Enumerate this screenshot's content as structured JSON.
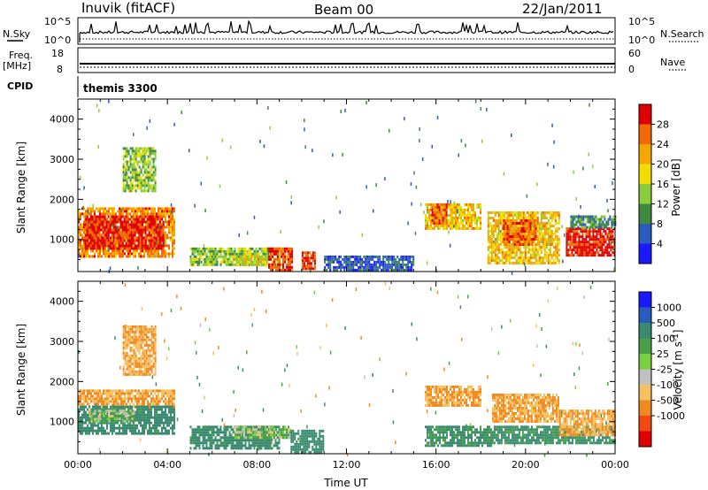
{
  "header": {
    "title": "Inuvik (fitACF)",
    "beam": "Beam 00",
    "date": "22/Jan/2011"
  },
  "nsky_panel": {
    "left_label": "N.Sky",
    "left_ticks": [
      "10^5",
      "10^0"
    ],
    "right_label": "N.Search",
    "right_ticks": [
      "10^5",
      "10^0"
    ]
  },
  "freq_panel": {
    "left_label_1": "Freq.",
    "left_label_2": "[MHz]",
    "left_ticks": [
      "18",
      "8"
    ],
    "right_label": "Nave",
    "right_ticks": [
      "60",
      "0"
    ]
  },
  "cpid": {
    "label": "CPID",
    "value": "themis 3300"
  },
  "colors": {
    "power_scale": [
      "#1a1aff",
      "#2a5cc0",
      "#3f8a3f",
      "#8acd3c",
      "#f2dd00",
      "#f5a600",
      "#f26a00",
      "#e00000"
    ],
    "velocity_scale": [
      "#e00000",
      "#f04a10",
      "#f08a20",
      "#f5c060",
      "#c0c0c0",
      "#78d040",
      "#48a048",
      "#3a8a70",
      "#2a5cc0",
      "#1a1aff"
    ]
  },
  "chart_data": [
    {
      "type": "heatmap",
      "name": "power",
      "ylabel": "Slant Range [km]",
      "yticks": [
        "1000",
        "2000",
        "3000",
        "4000"
      ],
      "ylim": [
        200,
        4500
      ],
      "xlim": [
        "00:00",
        "24:00"
      ],
      "colorbar_label": "Power [dB]",
      "colorbar_ticks": [
        "4",
        "8",
        "12",
        "16",
        "20",
        "24",
        "28"
      ],
      "colorbar_range": [
        0,
        32
      ],
      "regions": [
        {
          "t0": 0.0,
          "t1": 4.3,
          "r0": 600,
          "r1": 1800,
          "value": 24
        },
        {
          "t0": 0.3,
          "t1": 3.8,
          "r0": 800,
          "r1": 1600,
          "value": 30
        },
        {
          "t0": 2.0,
          "t1": 3.5,
          "r0": 2200,
          "r1": 3300,
          "value": 14
        },
        {
          "t0": 5.0,
          "t1": 9.0,
          "r0": 350,
          "r1": 800,
          "value": 14
        },
        {
          "t0": 7.0,
          "t1": 8.5,
          "r0": 400,
          "r1": 600,
          "value": 18
        },
        {
          "t0": 8.5,
          "t1": 9.6,
          "r0": 250,
          "r1": 800,
          "value": 28
        },
        {
          "t0": 10.0,
          "t1": 10.6,
          "r0": 250,
          "r1": 700,
          "value": 28
        },
        {
          "t0": 15.5,
          "t1": 18.0,
          "r0": 1300,
          "r1": 1900,
          "value": 20
        },
        {
          "t0": 15.8,
          "t1": 16.5,
          "r0": 1400,
          "r1": 1900,
          "value": 26
        },
        {
          "t0": 18.3,
          "t1": 21.5,
          "r0": 400,
          "r1": 1700,
          "value": 20
        },
        {
          "t0": 19.0,
          "t1": 20.5,
          "r0": 900,
          "r1": 1500,
          "value": 26
        },
        {
          "t0": 21.8,
          "t1": 24.0,
          "r0": 600,
          "r1": 1300,
          "value": 30
        },
        {
          "t0": 22.0,
          "t1": 24.0,
          "r0": 1300,
          "r1": 1600,
          "value": 10
        },
        {
          "t0": 11.0,
          "t1": 15.0,
          "r0": 250,
          "r1": 600,
          "value": 6
        }
      ]
    },
    {
      "type": "heatmap",
      "name": "velocity",
      "ylabel": "Slant Range [km]",
      "yticks": [
        "1000",
        "2000",
        "3000",
        "4000"
      ],
      "ylim": [
        200,
        4500
      ],
      "xlabel": "Time UT",
      "xticks": [
        "00:00",
        "04:00",
        "08:00",
        "12:00",
        "16:00",
        "20:00",
        "00:00"
      ],
      "xlim": [
        "00:00",
        "24:00"
      ],
      "colorbar_label": "Velocity [m s-1]",
      "colorbar_ticks": [
        "-1000",
        "-500",
        "-100",
        "-25",
        "25",
        "100",
        "500",
        "1000"
      ],
      "regions": [
        {
          "t0": 0.0,
          "t1": 4.3,
          "r0": 1400,
          "r1": 1800,
          "value": -100
        },
        {
          "t0": 0.0,
          "t1": 4.3,
          "r0": 700,
          "r1": 1400,
          "value": 150
        },
        {
          "t0": 0.5,
          "t1": 2.5,
          "r0": 1000,
          "r1": 1300,
          "value": 20
        },
        {
          "t0": 2.0,
          "t1": 3.5,
          "r0": 2200,
          "r1": 3400,
          "value": -100
        },
        {
          "t0": 5.0,
          "t1": 9.0,
          "r0": 350,
          "r1": 900,
          "value": 150
        },
        {
          "t0": 7.0,
          "t1": 9.5,
          "r0": 600,
          "r1": 900,
          "value": 20
        },
        {
          "t0": 9.5,
          "t1": 11.0,
          "r0": 250,
          "r1": 800,
          "value": 200
        },
        {
          "t0": 15.5,
          "t1": 18.0,
          "r0": 1400,
          "r1": 1900,
          "value": -100
        },
        {
          "t0": 15.5,
          "t1": 18.5,
          "r0": 400,
          "r1": 900,
          "value": 120
        },
        {
          "t0": 18.5,
          "t1": 21.5,
          "r0": 1000,
          "r1": 1700,
          "value": -100
        },
        {
          "t0": 18.5,
          "t1": 24.0,
          "r0": 500,
          "r1": 900,
          "value": 120
        },
        {
          "t0": 21.5,
          "t1": 24.0,
          "r0": 700,
          "r1": 1300,
          "value": -100
        }
      ]
    }
  ]
}
